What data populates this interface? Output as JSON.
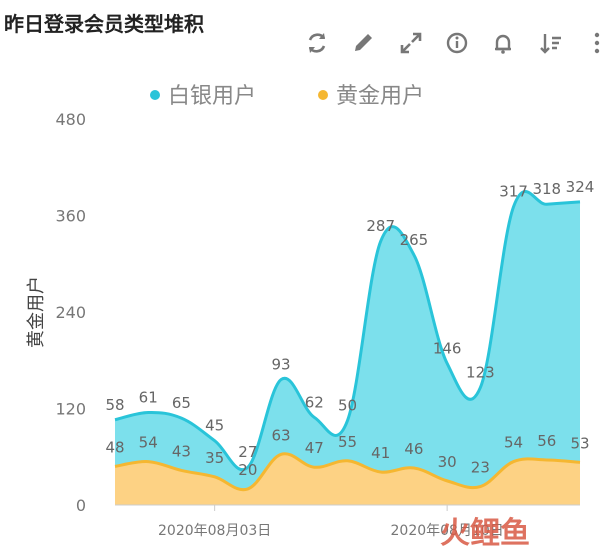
{
  "header": {
    "title": "昨日登录会员类型堆积",
    "tools": [
      "refresh-icon",
      "edit-icon",
      "expand-icon",
      "info-icon",
      "bell-icon",
      "sort-icon",
      "more-icon"
    ]
  },
  "colors": {
    "silver": "#29c4d9",
    "silver_fill": "#7ce0ec",
    "gold": "#f5b731",
    "gold_fill": "#fdd284",
    "axis_text": "#777777",
    "label_text": "#666666"
  },
  "watermark": "火鲤鱼",
  "chart_data": {
    "type": "area",
    "stacked": true,
    "ylabel": "黄金用户",
    "ylim": [
      0,
      480
    ],
    "yticks": [
      "0",
      "120",
      "240",
      "360",
      "480"
    ],
    "x_tick_labels": [
      "2020年08月03日",
      "2020年08月10日"
    ],
    "legend_position": "top",
    "grid": false,
    "series": [
      {
        "name": "白银用户",
        "values": [
          58,
          61,
          65,
          45,
          27,
          93,
          62,
          50,
          287,
          265,
          146,
          123,
          317,
          318,
          324
        ]
      },
      {
        "name": "黄金用户",
        "values": [
          48,
          54,
          43,
          35,
          20,
          63,
          47,
          55,
          41,
          46,
          30,
          23,
          54,
          56,
          53
        ]
      }
    ]
  }
}
